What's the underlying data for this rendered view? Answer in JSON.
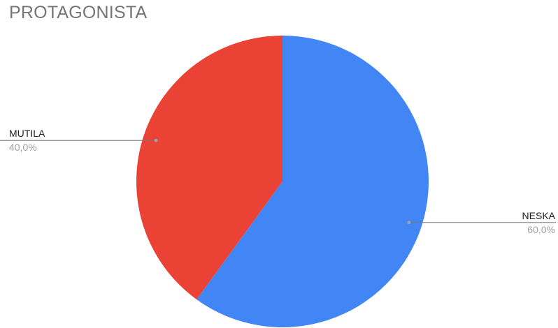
{
  "chart_data": {
    "type": "pie",
    "title": "PROTAGONISTA",
    "slices": [
      {
        "label": "NESKA",
        "value": 60.0,
        "display": "60,0%",
        "color": "#4285f4"
      },
      {
        "label": "MUTILA",
        "value": 40.0,
        "display": "40,0%",
        "color": "#ea4335"
      }
    ],
    "legend": "none"
  }
}
